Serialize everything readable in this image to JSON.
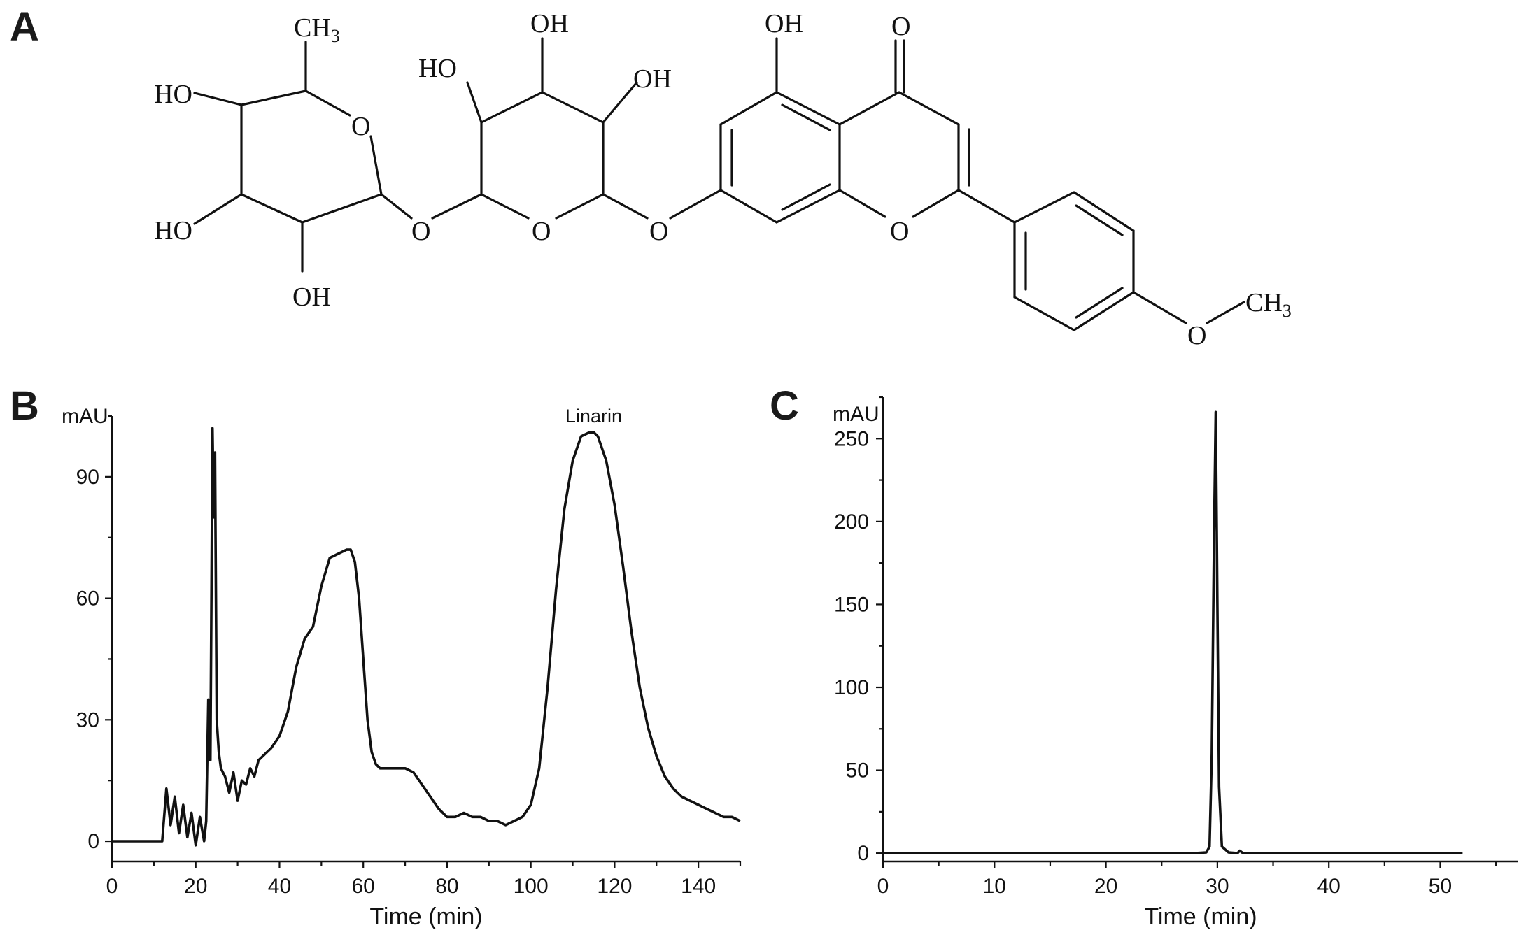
{
  "panels": {
    "a": "A",
    "b": "B",
    "c": "C"
  },
  "structure": {
    "labels": {
      "ch3_top": "CH",
      "ch3_top_sub": "3",
      "ho_1": "HO",
      "ho_2": "HO",
      "oh_rha": "OH",
      "o_ring_rha": "O",
      "o_link_1": "O",
      "ho_glc": "HO",
      "oh_glc_top": "OH",
      "oh_glc_right": "OH",
      "o_ring_glc": "O",
      "o_link_2": "O",
      "oh_5": "OH",
      "o_keto": "O",
      "o_ring_c": "O",
      "o_methoxy": "O",
      "ch3_methoxy": "CH",
      "ch3_methoxy_sub": "3"
    }
  },
  "chart_data": [
    {
      "type": "line",
      "panel": "B",
      "xlabel": "Time (min)",
      "ylabel": "mAU",
      "xlim": [
        0,
        150
      ],
      "ylim": [
        -5,
        105
      ],
      "xticks": [
        0,
        20,
        40,
        60,
        80,
        100,
        120,
        140
      ],
      "yticks": [
        0,
        30,
        60,
        90
      ],
      "annotations": [
        {
          "text": "Linarin",
          "x": 115,
          "y": 101
        }
      ],
      "series": [
        {
          "x": [
            0,
            10,
            12,
            13,
            14,
            15,
            16,
            17,
            18,
            19,
            20,
            21,
            22,
            22.5,
            23,
            23.5,
            24,
            24.3,
            24.6,
            25,
            25.5,
            26,
            27,
            28,
            29,
            30,
            31,
            32,
            33,
            34,
            35,
            36,
            38,
            40,
            42,
            44,
            46,
            48,
            50,
            52,
            54,
            56,
            57,
            58,
            59,
            60,
            61,
            62,
            63,
            64,
            66,
            68,
            70,
            72,
            74,
            76,
            78,
            80,
            82,
            84,
            86,
            88,
            90,
            92,
            94,
            96,
            98,
            100,
            102,
            104,
            106,
            108,
            110,
            112,
            114,
            115,
            116,
            118,
            120,
            122,
            124,
            126,
            128,
            130,
            132,
            134,
            136,
            138,
            140,
            142,
            144,
            146,
            148,
            150
          ],
          "y": [
            0,
            0,
            0,
            13,
            4,
            11,
            2,
            9,
            1,
            7,
            -1,
            6,
            0,
            5,
            35,
            20,
            102,
            80,
            96,
            30,
            22,
            18,
            16,
            12,
            17,
            10,
            15,
            14,
            18,
            16,
            20,
            21,
            23,
            26,
            32,
            43,
            50,
            53,
            63,
            70,
            71,
            72,
            72,
            69,
            60,
            45,
            30,
            22,
            19,
            18,
            18,
            18,
            18,
            17,
            14,
            11,
            8,
            6,
            6,
            7,
            6,
            6,
            5,
            5,
            4,
            5,
            6,
            9,
            18,
            38,
            62,
            82,
            94,
            100,
            101,
            101,
            100,
            94,
            83,
            68,
            52,
            38,
            28,
            21,
            16,
            13,
            11,
            10,
            9,
            8,
            7,
            6,
            6,
            5
          ]
        }
      ]
    },
    {
      "type": "line",
      "panel": "C",
      "xlabel": "Time (min)",
      "ylabel": "mAU",
      "xlim": [
        0,
        57
      ],
      "ylim": [
        -5,
        275
      ],
      "xticks": [
        0,
        10,
        20,
        30,
        40,
        50
      ],
      "yticks": [
        0,
        50,
        100,
        150,
        200,
        250
      ],
      "series": [
        {
          "x": [
            0,
            28,
            29,
            29.3,
            29.5,
            29.7,
            29.85,
            30,
            30.15,
            30.4,
            31,
            31.8,
            32,
            32.3,
            40,
            52
          ],
          "y": [
            0,
            0,
            0.5,
            4,
            60,
            190,
            266,
            150,
            40,
            4,
            0.5,
            0,
            1.5,
            0,
            0,
            0
          ]
        }
      ]
    }
  ]
}
